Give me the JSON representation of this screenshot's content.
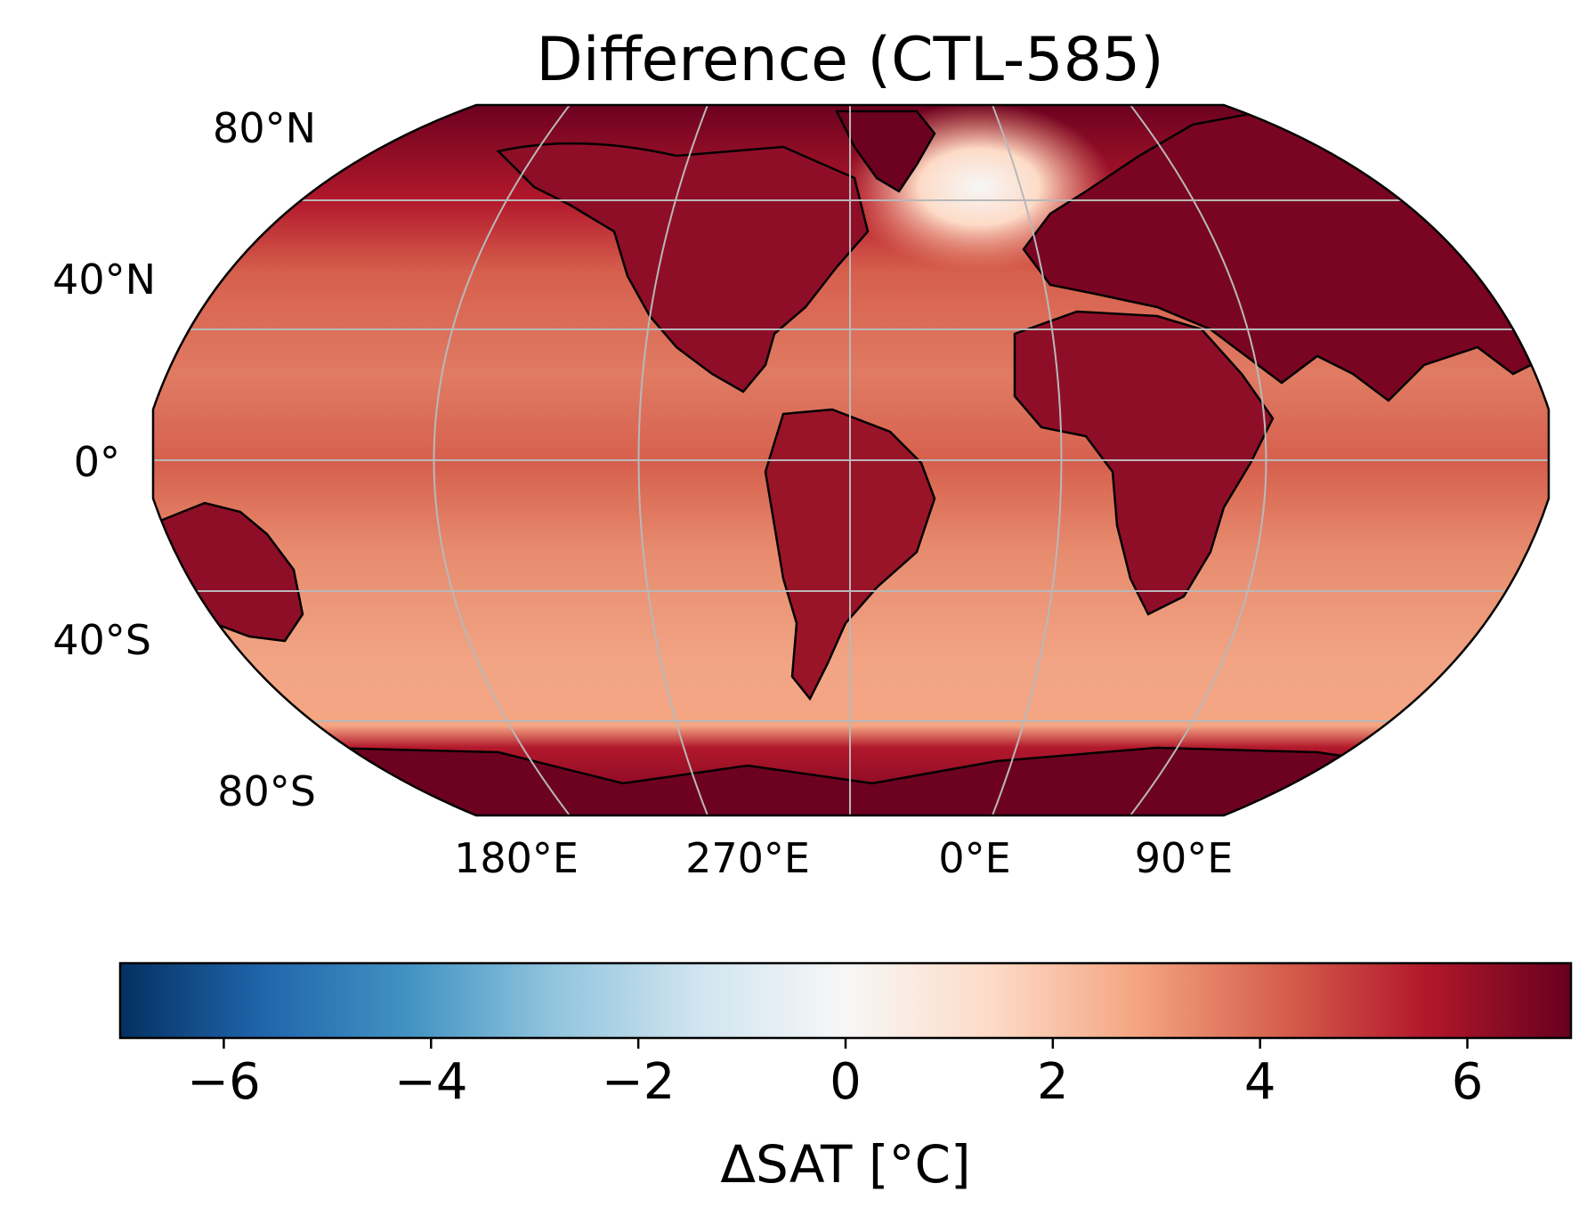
{
  "title": "Difference (CTL-585)",
  "map": {
    "projection": "Robinson",
    "gridlines": true,
    "coastlines": true,
    "lat_labels": [
      "80°N",
      "40°N",
      "0°",
      "40°S",
      "80°S"
    ],
    "lon_labels": [
      "180°E",
      "270°E",
      "0°E",
      "90°E"
    ],
    "dominant_fill": "#b2182b",
    "ice_fill": "#67001f"
  },
  "colorbar": {
    "label": "ΔSAT [°C]",
    "ticks": [
      "−6",
      "−4",
      "−2",
      "0",
      "2",
      "4",
      "6"
    ],
    "range": [
      -7,
      7
    ],
    "colormap": "RdBu_r",
    "stops": [
      "#053061",
      "#2166ac",
      "#4393c3",
      "#92c5de",
      "#d1e5f0",
      "#f7f7f7",
      "#fddbc7",
      "#f4a582",
      "#d6604d",
      "#b2182b",
      "#67001f"
    ]
  }
}
